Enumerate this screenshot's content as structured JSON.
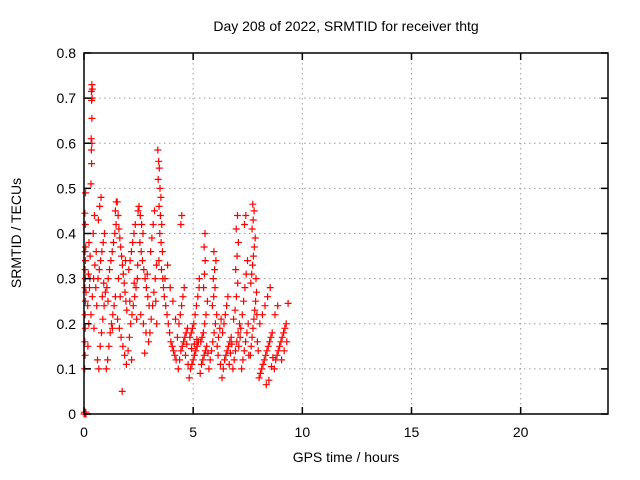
{
  "title": "Day 208 of 2022, SRMTID for receiver thtg",
  "colors": {
    "marker": "#ff0000",
    "grid": "#9c9c9c",
    "axis": "#000000",
    "background": "#ffffff",
    "text": "#000000"
  },
  "chart_data": {
    "type": "scatter",
    "title": "Day 208 of 2022, SRMTID for receiver thtg",
    "xlabel": "GPS time / hours",
    "ylabel": "SRMTID / TECUs",
    "xlim": [
      0,
      24
    ],
    "ylim": [
      0,
      0.8
    ],
    "xticks": [
      0,
      5,
      10,
      15,
      20
    ],
    "yticks": [
      0,
      0.1,
      0.2,
      0.3,
      0.4,
      0.5,
      0.6,
      0.7,
      0.8
    ],
    "grid": true,
    "legend_position": "none",
    "marker": "plus",
    "marker_color": "#ff0000",
    "series_name": "SRMTID",
    "points": [
      [
        0.0,
        0.0
      ],
      [
        0.03,
        0.0
      ],
      [
        0.06,
        0.0
      ],
      [
        0.09,
        0.0
      ],
      [
        0.02,
        0.004
      ],
      [
        0.05,
        0.004
      ],
      [
        0.08,
        0.004
      ],
      [
        0.03,
        0.1
      ],
      [
        0.05,
        0.13
      ],
      [
        0.04,
        0.16
      ],
      [
        0.06,
        0.19
      ],
      [
        0.05,
        0.22
      ],
      [
        0.07,
        0.25
      ],
      [
        0.04,
        0.28
      ],
      [
        0.06,
        0.3
      ],
      [
        0.05,
        0.32
      ],
      [
        0.07,
        0.34
      ],
      [
        0.05,
        0.36
      ],
      [
        0.08,
        0.37
      ],
      [
        0.06,
        0.42
      ],
      [
        0.04,
        0.445
      ],
      [
        0.07,
        0.49
      ],
      [
        0.09,
        0.27
      ],
      [
        0.18,
        0.15
      ],
      [
        0.22,
        0.2
      ],
      [
        0.17,
        0.24
      ],
      [
        0.25,
        0.28
      ],
      [
        0.2,
        0.31
      ],
      [
        0.28,
        0.35
      ],
      [
        0.23,
        0.38
      ],
      [
        0.27,
        0.3
      ],
      [
        0.36,
        0.73
      ],
      [
        0.38,
        0.72
      ],
      [
        0.34,
        0.715
      ],
      [
        0.37,
        0.7
      ],
      [
        0.35,
        0.695
      ],
      [
        0.36,
        0.655
      ],
      [
        0.33,
        0.61
      ],
      [
        0.36,
        0.6
      ],
      [
        0.34,
        0.585
      ],
      [
        0.35,
        0.555
      ],
      [
        0.32,
        0.51
      ],
      [
        0.32,
        0.22
      ],
      [
        0.38,
        0.26
      ],
      [
        0.44,
        0.3
      ],
      [
        0.5,
        0.33
      ],
      [
        0.56,
        0.36
      ],
      [
        0.42,
        0.4
      ],
      [
        0.48,
        0.44
      ],
      [
        0.54,
        0.28
      ],
      [
        0.58,
        0.24
      ],
      [
        0.46,
        0.19
      ],
      [
        0.62,
        0.12
      ],
      [
        0.68,
        0.1
      ],
      [
        0.74,
        0.15
      ],
      [
        0.8,
        0.18
      ],
      [
        0.86,
        0.21
      ],
      [
        0.92,
        0.24
      ],
      [
        0.98,
        0.27
      ],
      [
        0.64,
        0.3
      ],
      [
        0.7,
        0.32
      ],
      [
        0.76,
        0.34
      ],
      [
        0.82,
        0.36
      ],
      [
        0.88,
        0.38
      ],
      [
        0.94,
        0.4
      ],
      [
        0.66,
        0.43
      ],
      [
        0.72,
        0.46
      ],
      [
        0.78,
        0.48
      ],
      [
        0.84,
        0.26
      ],
      [
        0.9,
        0.29
      ],
      [
        1.02,
        0.1
      ],
      [
        1.08,
        0.12
      ],
      [
        1.14,
        0.15
      ],
      [
        1.2,
        0.18
      ],
      [
        1.26,
        0.2
      ],
      [
        1.32,
        0.22
      ],
      [
        1.38,
        0.24
      ],
      [
        1.44,
        0.26
      ],
      [
        1.05,
        0.28
      ],
      [
        1.11,
        0.3
      ],
      [
        1.17,
        0.32
      ],
      [
        1.23,
        0.34
      ],
      [
        1.29,
        0.36
      ],
      [
        1.35,
        0.38
      ],
      [
        1.41,
        0.4
      ],
      [
        1.47,
        0.42
      ],
      [
        1.44,
        0.45
      ],
      [
        1.48,
        0.47
      ],
      [
        1.1,
        0.25
      ],
      [
        1.3,
        0.19
      ],
      [
        1.52,
        0.47
      ],
      [
        1.56,
        0.44
      ],
      [
        1.6,
        0.41
      ],
      [
        1.64,
        0.39
      ],
      [
        1.68,
        0.37
      ],
      [
        1.72,
        0.35
      ],
      [
        1.76,
        0.33
      ],
      [
        1.8,
        0.31
      ],
      [
        1.84,
        0.29
      ],
      [
        1.88,
        0.27
      ],
      [
        1.92,
        0.25
      ],
      [
        1.96,
        0.23
      ],
      [
        1.54,
        0.21
      ],
      [
        1.62,
        0.19
      ],
      [
        1.7,
        0.17
      ],
      [
        1.78,
        0.15
      ],
      [
        1.86,
        0.13
      ],
      [
        1.94,
        0.11
      ],
      [
        1.75,
        0.05
      ],
      [
        1.58,
        0.3
      ],
      [
        1.66,
        0.26
      ],
      [
        1.9,
        0.34
      ],
      [
        2.02,
        0.14
      ],
      [
        2.08,
        0.17
      ],
      [
        2.14,
        0.2
      ],
      [
        2.2,
        0.22
      ],
      [
        2.26,
        0.24
      ],
      [
        2.32,
        0.26
      ],
      [
        2.38,
        0.28
      ],
      [
        2.44,
        0.3
      ],
      [
        2.05,
        0.32
      ],
      [
        2.11,
        0.34
      ],
      [
        2.17,
        0.36
      ],
      [
        2.23,
        0.38
      ],
      [
        2.29,
        0.4
      ],
      [
        2.35,
        0.42
      ],
      [
        2.48,
        0.45
      ],
      [
        2.41,
        0.21
      ],
      [
        2.1,
        0.25
      ],
      [
        2.3,
        0.29
      ],
      [
        2.46,
        0.33
      ],
      [
        2.18,
        0.12
      ],
      [
        2.52,
        0.46
      ],
      [
        2.58,
        0.44
      ],
      [
        2.64,
        0.42
      ],
      [
        2.7,
        0.4
      ],
      [
        2.56,
        0.38
      ],
      [
        2.62,
        0.36
      ],
      [
        2.68,
        0.34
      ],
      [
        2.74,
        0.32
      ],
      [
        2.8,
        0.3
      ],
      [
        2.86,
        0.28
      ],
      [
        2.92,
        0.26
      ],
      [
        2.98,
        0.24
      ],
      [
        2.6,
        0.22
      ],
      [
        2.72,
        0.2
      ],
      [
        2.84,
        0.18
      ],
      [
        2.96,
        0.16
      ],
      [
        2.78,
        0.135
      ],
      [
        2.9,
        0.31
      ],
      [
        3.02,
        0.18
      ],
      [
        3.08,
        0.21
      ],
      [
        3.14,
        0.24
      ],
      [
        3.2,
        0.27
      ],
      [
        3.26,
        0.3
      ],
      [
        3.32,
        0.33
      ],
      [
        3.05,
        0.36
      ],
      [
        3.11,
        0.39
      ],
      [
        3.17,
        0.42
      ],
      [
        3.23,
        0.45
      ],
      [
        3.29,
        0.25
      ],
      [
        3.33,
        0.2
      ],
      [
        3.38,
        0.585
      ],
      [
        3.42,
        0.56
      ],
      [
        3.45,
        0.545
      ],
      [
        3.4,
        0.52
      ],
      [
        3.48,
        0.5
      ],
      [
        3.52,
        0.48
      ],
      [
        3.44,
        0.46
      ],
      [
        3.5,
        0.44
      ],
      [
        3.56,
        0.42
      ],
      [
        3.47,
        0.4
      ],
      [
        3.53,
        0.38
      ],
      [
        3.59,
        0.36
      ],
      [
        3.43,
        0.34
      ],
      [
        3.55,
        0.32
      ],
      [
        3.61,
        0.3
      ],
      [
        3.64,
        0.28
      ],
      [
        3.68,
        0.26
      ],
      [
        3.74,
        0.24
      ],
      [
        3.8,
        0.22
      ],
      [
        3.86,
        0.2
      ],
      [
        3.92,
        0.18
      ],
      [
        3.98,
        0.16
      ],
      [
        4.04,
        0.15
      ],
      [
        4.1,
        0.14
      ],
      [
        4.16,
        0.13
      ],
      [
        4.22,
        0.12
      ],
      [
        3.71,
        0.3
      ],
      [
        3.83,
        0.33
      ],
      [
        3.95,
        0.28
      ],
      [
        4.07,
        0.25
      ],
      [
        4.19,
        0.21
      ],
      [
        4.28,
        0.17
      ],
      [
        4.32,
        0.1
      ],
      [
        4.38,
        0.12
      ],
      [
        4.44,
        0.14
      ],
      [
        4.5,
        0.15
      ],
      [
        4.56,
        0.16
      ],
      [
        4.62,
        0.17
      ],
      [
        4.68,
        0.18
      ],
      [
        4.74,
        0.19
      ],
      [
        4.35,
        0.2
      ],
      [
        4.41,
        0.22
      ],
      [
        4.47,
        0.24
      ],
      [
        4.53,
        0.26
      ],
      [
        4.59,
        0.28
      ],
      [
        4.44,
        0.42
      ],
      [
        4.48,
        0.44
      ],
      [
        4.65,
        0.13
      ],
      [
        4.71,
        0.155
      ],
      [
        4.77,
        0.11
      ],
      [
        4.82,
        0.08
      ],
      [
        4.88,
        0.1
      ],
      [
        4.94,
        0.11
      ],
      [
        5.0,
        0.12
      ],
      [
        5.06,
        0.13
      ],
      [
        5.12,
        0.14
      ],
      [
        5.18,
        0.15
      ],
      [
        5.24,
        0.16
      ],
      [
        4.85,
        0.17
      ],
      [
        4.91,
        0.18
      ],
      [
        4.97,
        0.19
      ],
      [
        5.03,
        0.2
      ],
      [
        5.09,
        0.22
      ],
      [
        5.15,
        0.24
      ],
      [
        5.21,
        0.26
      ],
      [
        5.27,
        0.28
      ],
      [
        4.93,
        0.145
      ],
      [
        5.05,
        0.155
      ],
      [
        5.17,
        0.165
      ],
      [
        5.28,
        0.3
      ],
      [
        5.32,
        0.09
      ],
      [
        5.38,
        0.11
      ],
      [
        5.44,
        0.12
      ],
      [
        5.5,
        0.13
      ],
      [
        5.56,
        0.14
      ],
      [
        5.62,
        0.15
      ],
      [
        5.35,
        0.16
      ],
      [
        5.41,
        0.17
      ],
      [
        5.47,
        0.18
      ],
      [
        5.53,
        0.2
      ],
      [
        5.48,
        0.28
      ],
      [
        5.52,
        0.31
      ],
      [
        5.55,
        0.34
      ],
      [
        5.5,
        0.37
      ],
      [
        5.54,
        0.4
      ],
      [
        5.59,
        0.22
      ],
      [
        5.65,
        0.25
      ],
      [
        5.68,
        0.135
      ],
      [
        5.72,
        0.1
      ],
      [
        5.78,
        0.12
      ],
      [
        5.84,
        0.14
      ],
      [
        5.9,
        0.16
      ],
      [
        5.96,
        0.18
      ],
      [
        6.02,
        0.2
      ],
      [
        6.08,
        0.22
      ],
      [
        5.88,
        0.24
      ],
      [
        5.94,
        0.26
      ],
      [
        6.0,
        0.28
      ],
      [
        5.92,
        0.3
      ],
      [
        5.98,
        0.32
      ],
      [
        6.04,
        0.34
      ],
      [
        5.95,
        0.36
      ],
      [
        6.1,
        0.15
      ],
      [
        6.16,
        0.17
      ],
      [
        6.22,
        0.19
      ],
      [
        6.28,
        0.21
      ],
      [
        6.14,
        0.13
      ],
      [
        6.25,
        0.11
      ],
      [
        6.32,
        0.08
      ],
      [
        6.38,
        0.1
      ],
      [
        6.44,
        0.12
      ],
      [
        6.5,
        0.13
      ],
      [
        6.56,
        0.14
      ],
      [
        6.62,
        0.15
      ],
      [
        6.68,
        0.16
      ],
      [
        6.74,
        0.17
      ],
      [
        6.35,
        0.18
      ],
      [
        6.41,
        0.2
      ],
      [
        6.47,
        0.22
      ],
      [
        6.53,
        0.24
      ],
      [
        6.59,
        0.26
      ],
      [
        6.65,
        0.11
      ],
      [
        6.71,
        0.135
      ],
      [
        6.77,
        0.155
      ],
      [
        6.82,
        0.1
      ],
      [
        6.88,
        0.12
      ],
      [
        6.94,
        0.14
      ],
      [
        7.0,
        0.16
      ],
      [
        7.06,
        0.18
      ],
      [
        7.12,
        0.2
      ],
      [
        6.92,
        0.23
      ],
      [
        6.98,
        0.26
      ],
      [
        7.04,
        0.29
      ],
      [
        6.95,
        0.32
      ],
      [
        7.01,
        0.35
      ],
      [
        7.07,
        0.38
      ],
      [
        6.97,
        0.41
      ],
      [
        7.03,
        0.44
      ],
      [
        7.09,
        0.15
      ],
      [
        7.15,
        0.17
      ],
      [
        7.18,
        0.19
      ],
      [
        6.85,
        0.21
      ],
      [
        7.22,
        0.1
      ],
      [
        7.28,
        0.12
      ],
      [
        7.34,
        0.14
      ],
      [
        7.4,
        0.16
      ],
      [
        7.46,
        0.18
      ],
      [
        7.52,
        0.2
      ],
      [
        7.25,
        0.22
      ],
      [
        7.31,
        0.25
      ],
      [
        7.37,
        0.28
      ],
      [
        7.43,
        0.31
      ],
      [
        7.49,
        0.34
      ],
      [
        7.35,
        0.42
      ],
      [
        7.41,
        0.44
      ],
      [
        7.55,
        0.13
      ],
      [
        7.62,
        0.13
      ],
      [
        7.66,
        0.15
      ],
      [
        7.7,
        0.17
      ],
      [
        7.74,
        0.19
      ],
      [
        7.78,
        0.21
      ],
      [
        7.82,
        0.23
      ],
      [
        7.86,
        0.25
      ],
      [
        7.9,
        0.27
      ],
      [
        7.64,
        0.29
      ],
      [
        7.68,
        0.31
      ],
      [
        7.72,
        0.33
      ],
      [
        7.76,
        0.35
      ],
      [
        7.8,
        0.37
      ],
      [
        7.84,
        0.39
      ],
      [
        7.7,
        0.41
      ],
      [
        7.75,
        0.43
      ],
      [
        7.79,
        0.45
      ],
      [
        7.73,
        0.465
      ],
      [
        7.94,
        0.16
      ],
      [
        7.98,
        0.14
      ],
      [
        7.88,
        0.3
      ],
      [
        7.92,
        0.22
      ],
      [
        8.02,
        0.08
      ],
      [
        8.08,
        0.09
      ],
      [
        8.14,
        0.1
      ],
      [
        8.2,
        0.11
      ],
      [
        8.26,
        0.12
      ],
      [
        8.32,
        0.13
      ],
      [
        8.38,
        0.14
      ],
      [
        8.44,
        0.15
      ],
      [
        8.5,
        0.16
      ],
      [
        8.56,
        0.17
      ],
      [
        8.62,
        0.18
      ],
      [
        8.05,
        0.2
      ],
      [
        8.17,
        0.22
      ],
      [
        8.29,
        0.24
      ],
      [
        8.41,
        0.26
      ],
      [
        8.53,
        0.28
      ],
      [
        8.35,
        0.065
      ],
      [
        8.47,
        0.075
      ],
      [
        8.59,
        0.105
      ],
      [
        8.65,
        0.125
      ],
      [
        8.72,
        0.1
      ],
      [
        8.78,
        0.12
      ],
      [
        8.84,
        0.13
      ],
      [
        8.9,
        0.14
      ],
      [
        8.96,
        0.15
      ],
      [
        9.02,
        0.16
      ],
      [
        9.08,
        0.17
      ],
      [
        9.14,
        0.18
      ],
      [
        9.2,
        0.19
      ],
      [
        9.26,
        0.2
      ],
      [
        8.75,
        0.22
      ],
      [
        8.87,
        0.24
      ],
      [
        9.05,
        0.12
      ],
      [
        9.17,
        0.14
      ],
      [
        9.29,
        0.16
      ],
      [
        9.35,
        0.245
      ]
    ]
  }
}
